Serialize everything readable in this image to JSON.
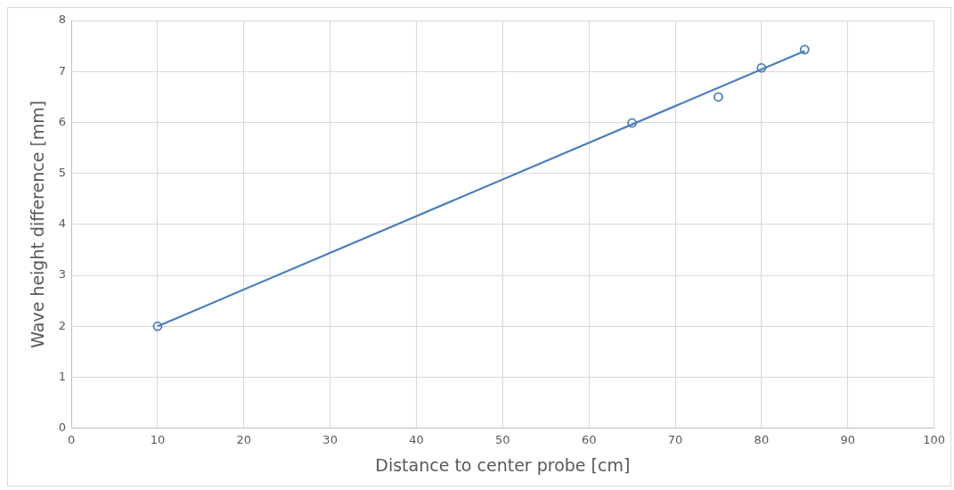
{
  "chart_data": {
    "type": "scatter",
    "xlabel": "Distance to center probe [cm]",
    "ylabel": "Wave height difference [mm]",
    "xlim": [
      0,
      100
    ],
    "xticks": [
      0,
      10,
      20,
      30,
      40,
      50,
      60,
      70,
      80,
      90,
      100
    ],
    "ylim": [
      0,
      8
    ],
    "yticks": [
      0,
      1,
      2,
      3,
      4,
      5,
      6,
      7,
      8
    ],
    "grid": true,
    "legend": false,
    "series": [
      {
        "color": "#4a7ebb",
        "marker": "circle",
        "x": [
          10,
          65,
          75,
          80,
          85
        ],
        "values": [
          2.0,
          5.99,
          6.5,
          7.07,
          7.43
        ]
      },
      {
        "type": "line",
        "color": "#4a7ebb",
        "marker": "none",
        "line_style": "solid",
        "x": [
          10,
          85
        ],
        "values": [
          2.0,
          7.4
        ]
      }
    ]
  }
}
